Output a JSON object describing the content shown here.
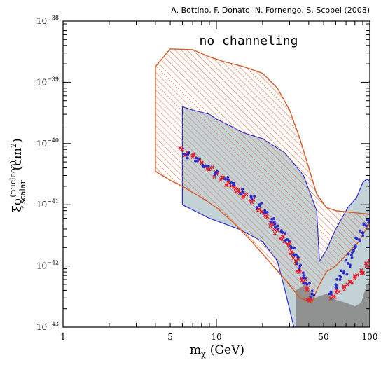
{
  "chart_data": {
    "type": "scatter",
    "credit": "A. Bottino, F. Donato, N. Fornengo, S. Scopel (2008)",
    "annotation": "no channeling",
    "xlabel": {
      "symbol": "m",
      "subscript": "χ",
      "unit": "(GeV)"
    },
    "ylabel": {
      "prefix": "ξ",
      "symbol": "σ",
      "superscript": "(nucleon)",
      "subscript": "scalar",
      "unit_open": "(cm",
      "unit_power": "2",
      "unit_close": ")"
    },
    "x_scale": "log",
    "y_scale": "log",
    "xlim": [
      1,
      100
    ],
    "ylim": [
      1e-43,
      1e-38
    ],
    "x_tick_labels": [
      {
        "value": 1,
        "label": "1"
      },
      {
        "value": 5,
        "label": "5"
      },
      {
        "value": 10,
        "label": "10"
      },
      {
        "value": 50,
        "label": "50"
      },
      {
        "value": 100,
        "label": "100"
      }
    ],
    "y_tick_labels": [
      {
        "value": 1e-38,
        "mantissa": "10",
        "exponent": "−38"
      },
      {
        "value": 1e-39,
        "mantissa": "10",
        "exponent": "−39"
      },
      {
        "value": 1e-40,
        "mantissa": "10",
        "exponent": "−40"
      },
      {
        "value": 1e-41,
        "mantissa": "10",
        "exponent": "−41"
      },
      {
        "value": 1e-42,
        "mantissa": "10",
        "exponent": "−42"
      },
      {
        "value": 1e-43,
        "mantissa": "10",
        "exponent": "−43"
      }
    ],
    "regions": {
      "blue_shaded": {
        "color": "#7a9ba5",
        "outline": "#2a2ad0",
        "points": [
          [
            6,
            4e-41
          ],
          [
            6,
            1e-41
          ],
          [
            9,
            6e-42
          ],
          [
            14,
            4e-42
          ],
          [
            20,
            2.5e-42
          ],
          [
            25,
            1.2e-42
          ],
          [
            28,
            4e-43
          ],
          [
            32,
            1e-43
          ],
          [
            100,
            1e-43
          ],
          [
            100,
            2.5e-41
          ],
          [
            95,
            2.6e-41
          ],
          [
            90,
            2.3e-41
          ],
          [
            82,
            1.3e-41
          ],
          [
            72,
            9e-42
          ],
          [
            60,
            4e-42
          ],
          [
            52,
            1.8e-42
          ],
          [
            47,
            1.2e-42
          ],
          [
            45,
            8e-42
          ],
          [
            37,
            3e-41
          ],
          [
            28,
            7e-41
          ],
          [
            20,
            1.2e-40
          ],
          [
            15,
            1.5e-40
          ],
          [
            12,
            2e-40
          ],
          [
            10,
            2.5e-40
          ],
          [
            9,
            3e-40
          ],
          [
            7,
            3.5e-40
          ],
          [
            6,
            4e-40
          ]
        ]
      },
      "orange_hatched": {
        "color": "#e07040",
        "outline": "#d85a28",
        "points": [
          [
            4,
            1.8e-39
          ],
          [
            5,
            3.5e-39
          ],
          [
            7,
            3.4e-39
          ],
          [
            9,
            2.6e-39
          ],
          [
            11,
            2.2e-39
          ],
          [
            15,
            1.8e-39
          ],
          [
            20,
            1.4e-39
          ],
          [
            25,
            8e-40
          ],
          [
            30,
            3.5e-40
          ],
          [
            35,
            1.2e-40
          ],
          [
            40,
            4e-41
          ],
          [
            45,
            1.5e-41
          ],
          [
            52,
            9e-42
          ],
          [
            60,
            8e-42
          ],
          [
            75,
            7.5e-42
          ],
          [
            100,
            7e-42
          ],
          [
            100,
            5e-42
          ],
          [
            85,
            2.5e-42
          ],
          [
            70,
            1.5e-42
          ],
          [
            60,
            1e-42
          ],
          [
            52,
            8e-43
          ],
          [
            46,
            4.5e-43
          ],
          [
            42,
            2.5e-43
          ],
          [
            35,
            3e-43
          ],
          [
            28,
            6e-43
          ],
          [
            22,
            1.2e-42
          ],
          [
            17,
            2.5e-42
          ],
          [
            13,
            5e-42
          ],
          [
            10,
            9e-42
          ],
          [
            8,
            1.3e-41
          ],
          [
            6,
            2e-41
          ],
          [
            5,
            2.5e-41
          ],
          [
            4,
            3.5e-41
          ]
        ]
      },
      "grey_cloud": {
        "color": "#8a8a8a",
        "points": [
          [
            33,
            1e-43
          ],
          [
            33,
            4e-43
          ],
          [
            38,
            5e-43
          ],
          [
            44,
            3e-43
          ],
          [
            52,
            3.5e-43
          ],
          [
            60,
            2.8e-43
          ],
          [
            70,
            2.5e-43
          ],
          [
            80,
            2.2e-43
          ],
          [
            88,
            2.5e-43
          ],
          [
            95,
            4.8e-43
          ],
          [
            100,
            6e-43
          ],
          [
            100,
            1e-43
          ]
        ]
      }
    },
    "series": [
      {
        "marker": "cross",
        "color": "#e0202e",
        "values": [
          [
            6,
            8e-41
          ],
          [
            6.5,
            7e-41
          ],
          [
            7,
            6e-41
          ],
          [
            8,
            4.8e-41
          ],
          [
            9,
            3.8e-41
          ],
          [
            10,
            3.2e-41
          ],
          [
            11,
            2.7e-41
          ],
          [
            12,
            2.3e-41
          ],
          [
            13,
            1.9e-41
          ],
          [
            14,
            1.6e-41
          ],
          [
            15,
            1.4e-41
          ],
          [
            17,
            1.1e-41
          ],
          [
            19,
            8.5e-42
          ],
          [
            21,
            6.5e-42
          ],
          [
            23,
            5e-42
          ],
          [
            25,
            3.8e-42
          ],
          [
            27,
            3e-42
          ],
          [
            29,
            2.3e-42
          ],
          [
            31,
            1.7e-42
          ],
          [
            33,
            1.2e-42
          ],
          [
            35,
            8e-43
          ],
          [
            37,
            5.5e-43
          ],
          [
            39,
            4e-43
          ],
          [
            41,
            3e-43
          ],
          [
            58,
            3.2e-43
          ],
          [
            63,
            3.8e-43
          ],
          [
            68,
            4.5e-43
          ],
          [
            74,
            5.5e-43
          ],
          [
            80,
            7e-43
          ],
          [
            88,
            8.5e-43
          ],
          [
            95,
            1e-42
          ],
          [
            100,
            1.2e-42
          ]
        ]
      },
      {
        "marker": "circle",
        "color": "#2a2ad0",
        "values": [
          [
            6.5,
            6.5e-41
          ],
          [
            7.5,
            5.2e-41
          ],
          [
            8.5,
            4.3e-41
          ],
          [
            10,
            3.4e-41
          ],
          [
            11.5,
            2.6e-41
          ],
          [
            13,
            2.1e-41
          ],
          [
            15,
            1.6e-41
          ],
          [
            17,
            1.25e-41
          ],
          [
            19,
            9.5e-42
          ],
          [
            21,
            7.5e-42
          ],
          [
            23,
            5.8e-42
          ],
          [
            25,
            4.5e-42
          ],
          [
            27,
            3.5e-42
          ],
          [
            29,
            2.7e-42
          ],
          [
            31,
            2e-42
          ],
          [
            33,
            1.5e-42
          ],
          [
            35,
            1e-42
          ],
          [
            37,
            7e-43
          ],
          [
            39,
            5e-43
          ],
          [
            42,
            3.5e-43
          ],
          [
            56,
            3.5e-43
          ],
          [
            60,
            4.5e-43
          ],
          [
            64,
            6e-43
          ],
          [
            68,
            8e-43
          ],
          [
            72,
            1.1e-42
          ],
          [
            76,
            1.5e-42
          ],
          [
            80,
            2e-42
          ],
          [
            85,
            2.7e-42
          ],
          [
            90,
            3.5e-42
          ],
          [
            95,
            4.5e-42
          ],
          [
            100,
            5.5e-42
          ]
        ]
      }
    ]
  }
}
